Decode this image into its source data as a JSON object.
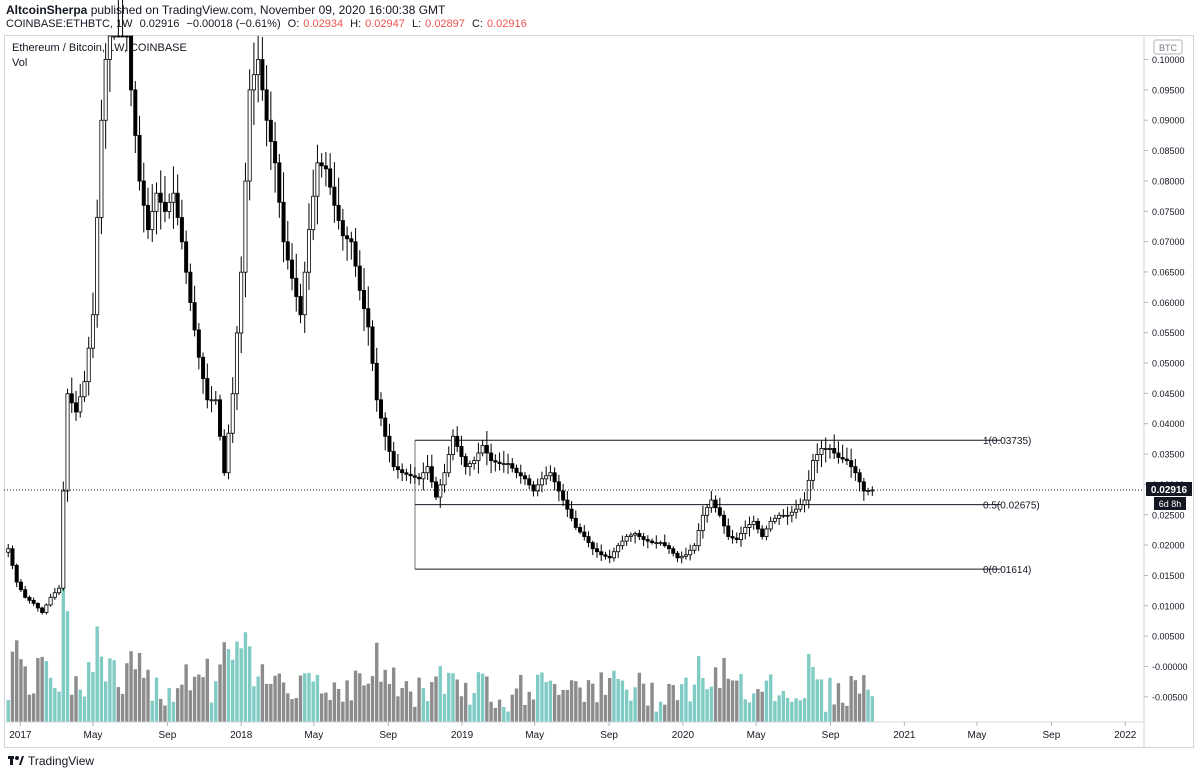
{
  "header": {
    "publisher": "AltcoinSherpa",
    "published_text": "published on TradingView.com, November 09, 2020 16:00:38 GMT",
    "symbol": "COINBASE:ETHBTC, 1W",
    "last": "0.02916",
    "change": "−0.00018 (−0.61%)",
    "open_label": "O:",
    "open": "0.02934",
    "high_label": "H:",
    "high": "0.02947",
    "low_label": "L:",
    "low": "0.02897",
    "close_label": "C:",
    "close": "0.02916"
  },
  "legend": {
    "title": "Ethereum / Bitcoin, 1W, COINBASE",
    "vol": "Vol"
  },
  "footer": {
    "brand": "TradingView"
  },
  "colors": {
    "up": "#26a69a",
    "down": "#ef5350",
    "candle": "#000000",
    "vol_up": "#80cbc4",
    "vol_down": "#8c8c8c",
    "last_tag": "#131722"
  },
  "chart_data": {
    "type": "candlestick",
    "currency_tag": "BTC",
    "last_price_tag": "0.02916",
    "countdown_tag": "6d 8h",
    "y_ticks": [
      "0.10000",
      "0.09500",
      "0.09000",
      "0.08500",
      "0.08000",
      "0.07500",
      "0.07000",
      "0.06500",
      "0.06000",
      "0.05500",
      "0.05000",
      "0.04500",
      "0.04000",
      "0.03500",
      "0.03000",
      "0.02500",
      "0.02000",
      "0.01500",
      "0.01000",
      "0.00500",
      "-0.00000",
      "-0.00500"
    ],
    "x_ticks": [
      "2017",
      "May",
      "Sep",
      "2018",
      "May",
      "Sep",
      "2019",
      "May",
      "Sep",
      "2020",
      "May",
      "Sep",
      "2021",
      "May",
      "Sep",
      "2022"
    ],
    "levels": [
      {
        "label": "1(0.03735)",
        "value": 0.03735
      },
      {
        "label": "0.5(0.02675)",
        "value": 0.02675
      },
      {
        "label": "0(0.01614)",
        "value": 0.01614
      }
    ],
    "series": [
      {
        "date": "2016-12-12",
        "close": 0.0195
      },
      {
        "date": "2016-12-26",
        "close": 0.014
      },
      {
        "date": "2017-01-09",
        "close": 0.0115
      },
      {
        "date": "2017-01-23",
        "close": 0.0105
      },
      {
        "date": "2017-02-06",
        "close": 0.009
      },
      {
        "date": "2017-02-20",
        "close": 0.0115
      },
      {
        "date": "2017-03-06",
        "close": 0.013
      },
      {
        "date": "2017-03-20",
        "close": 0.045
      },
      {
        "date": "2017-04-03",
        "close": 0.042
      },
      {
        "date": "2017-04-17",
        "close": 0.047
      },
      {
        "date": "2017-05-01",
        "close": 0.058
      },
      {
        "date": "2017-05-15",
        "close": 0.09
      },
      {
        "date": "2017-06-05",
        "close": 0.12
      },
      {
        "date": "2017-06-19",
        "close": 0.115
      },
      {
        "date": "2017-07-03",
        "close": 0.095
      },
      {
        "date": "2017-07-17",
        "close": 0.08
      },
      {
        "date": "2017-07-31",
        "close": 0.072
      },
      {
        "date": "2017-08-14",
        "close": 0.078
      },
      {
        "date": "2017-08-28",
        "close": 0.075
      },
      {
        "date": "2017-09-11",
        "close": 0.078
      },
      {
        "date": "2017-09-25",
        "close": 0.07
      },
      {
        "date": "2017-10-09",
        "close": 0.06
      },
      {
        "date": "2017-10-23",
        "close": 0.051
      },
      {
        "date": "2017-11-06",
        "close": 0.044
      },
      {
        "date": "2017-11-20",
        "close": 0.044
      },
      {
        "date": "2017-12-04",
        "close": 0.032
      },
      {
        "date": "2017-12-18",
        "close": 0.045
      },
      {
        "date": "2018-01-01",
        "close": 0.065
      },
      {
        "date": "2018-01-15",
        "close": 0.095
      },
      {
        "date": "2018-01-29",
        "close": 0.1
      },
      {
        "date": "2018-02-12",
        "close": 0.09
      },
      {
        "date": "2018-02-26",
        "close": 0.083
      },
      {
        "date": "2018-03-12",
        "close": 0.07
      },
      {
        "date": "2018-03-26",
        "close": 0.064
      },
      {
        "date": "2018-04-09",
        "close": 0.058
      },
      {
        "date": "2018-04-23",
        "close": 0.072
      },
      {
        "date": "2018-05-07",
        "close": 0.083
      },
      {
        "date": "2018-05-21",
        "close": 0.082
      },
      {
        "date": "2018-06-04",
        "close": 0.076
      },
      {
        "date": "2018-06-18",
        "close": 0.071
      },
      {
        "date": "2018-07-02",
        "close": 0.07
      },
      {
        "date": "2018-07-16",
        "close": 0.062
      },
      {
        "date": "2018-07-30",
        "close": 0.056
      },
      {
        "date": "2018-08-13",
        "close": 0.044
      },
      {
        "date": "2018-08-27",
        "close": 0.038
      },
      {
        "date": "2018-09-10",
        "close": 0.033
      },
      {
        "date": "2018-09-24",
        "close": 0.032
      },
      {
        "date": "2018-10-08",
        "close": 0.0315
      },
      {
        "date": "2018-10-22",
        "close": 0.031
      },
      {
        "date": "2018-11-05",
        "close": 0.033
      },
      {
        "date": "2018-11-19",
        "close": 0.028
      },
      {
        "date": "2018-12-03",
        "close": 0.032
      },
      {
        "date": "2018-12-17",
        "close": 0.038
      },
      {
        "date": "2019-01-07",
        "close": 0.033
      },
      {
        "date": "2019-01-21",
        "close": 0.034
      },
      {
        "date": "2019-02-04",
        "close": 0.0365
      },
      {
        "date": "2019-02-18",
        "close": 0.034
      },
      {
        "date": "2019-03-04",
        "close": 0.0335
      },
      {
        "date": "2019-03-18",
        "close": 0.0335
      },
      {
        "date": "2019-04-01",
        "close": 0.032
      },
      {
        "date": "2019-04-15",
        "close": 0.031
      },
      {
        "date": "2019-04-29",
        "close": 0.029
      },
      {
        "date": "2019-05-13",
        "close": 0.031
      },
      {
        "date": "2019-05-27",
        "close": 0.032
      },
      {
        "date": "2019-06-10",
        "close": 0.029
      },
      {
        "date": "2019-06-24",
        "close": 0.026
      },
      {
        "date": "2019-07-08",
        "close": 0.023
      },
      {
        "date": "2019-07-22",
        "close": 0.0215
      },
      {
        "date": "2019-08-05",
        "close": 0.0195
      },
      {
        "date": "2019-08-19",
        "close": 0.0185
      },
      {
        "date": "2019-09-02",
        "close": 0.018
      },
      {
        "date": "2019-09-16",
        "close": 0.02
      },
      {
        "date": "2019-09-30",
        "close": 0.0215
      },
      {
        "date": "2019-10-14",
        "close": 0.022
      },
      {
        "date": "2019-10-28",
        "close": 0.021
      },
      {
        "date": "2019-11-11",
        "close": 0.0205
      },
      {
        "date": "2019-11-25",
        "close": 0.0205
      },
      {
        "date": "2019-12-09",
        "close": 0.0195
      },
      {
        "date": "2019-12-23",
        "close": 0.018
      },
      {
        "date": "2020-01-06",
        "close": 0.0185
      },
      {
        "date": "2020-01-20",
        "close": 0.02
      },
      {
        "date": "2020-02-03",
        "close": 0.025
      },
      {
        "date": "2020-02-17",
        "close": 0.0275
      },
      {
        "date": "2020-03-02",
        "close": 0.025
      },
      {
        "date": "2020-03-16",
        "close": 0.0215
      },
      {
        "date": "2020-03-30",
        "close": 0.021
      },
      {
        "date": "2020-04-13",
        "close": 0.023
      },
      {
        "date": "2020-04-27",
        "close": 0.024
      },
      {
        "date": "2020-05-11",
        "close": 0.0215
      },
      {
        "date": "2020-05-25",
        "close": 0.024
      },
      {
        "date": "2020-06-08",
        "close": 0.025
      },
      {
        "date": "2020-06-22",
        "close": 0.025
      },
      {
        "date": "2020-07-06",
        "close": 0.026
      },
      {
        "date": "2020-07-20",
        "close": 0.0275
      },
      {
        "date": "2020-08-03",
        "close": 0.034
      },
      {
        "date": "2020-08-17",
        "close": 0.036
      },
      {
        "date": "2020-08-31",
        "close": 0.036
      },
      {
        "date": "2020-09-14",
        "close": 0.0345
      },
      {
        "date": "2020-09-28",
        "close": 0.034
      },
      {
        "date": "2020-10-12",
        "close": 0.032
      },
      {
        "date": "2020-10-26",
        "close": 0.029
      },
      {
        "date": "2020-11-09",
        "close": 0.02916
      }
    ]
  }
}
